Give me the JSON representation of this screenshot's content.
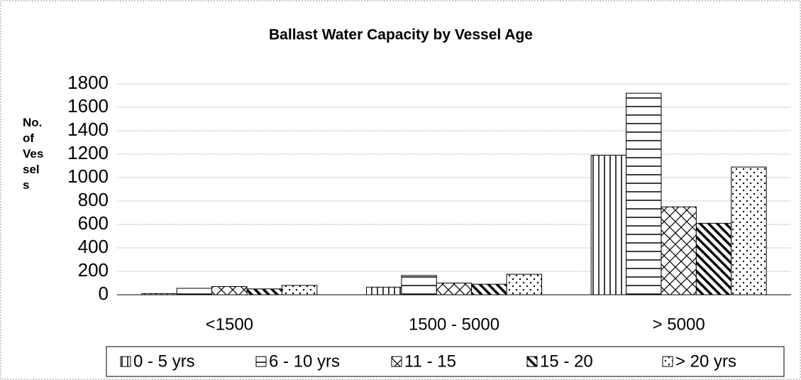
{
  "chart_data": {
    "type": "bar",
    "title": "Ballast Water Capacity by Vessel Age",
    "y_label": "No. of Vessels",
    "categories": [
      "<1500",
      "1500 - 5000",
      "> 5000"
    ],
    "series": [
      {
        "name": "0 - 5 yrs",
        "color": "#000000",
        "pattern": "vertical",
        "values": [
          10,
          65,
          1190
        ]
      },
      {
        "name": "6 - 10 yrs",
        "color": "#000000",
        "pattern": "horizontal",
        "values": [
          55,
          165,
          1720
        ]
      },
      {
        "name": "11 - 15",
        "color": "#000000",
        "pattern": "crosshatch",
        "values": [
          70,
          100,
          750
        ]
      },
      {
        "name": "15 - 20",
        "color": "#000000",
        "pattern": "diagonal",
        "values": [
          50,
          90,
          610
        ]
      },
      {
        "name": "> 20 yrs",
        "color": "#000000",
        "pattern": "dots",
        "values": [
          80,
          175,
          1090
        ]
      }
    ],
    "ylim": [
      0,
      1800
    ],
    "yticks": [
      0,
      200,
      400,
      600,
      800,
      1000,
      1200,
      1400,
      1600,
      1800
    ],
    "grid": true,
    "legend": "bottom"
  }
}
